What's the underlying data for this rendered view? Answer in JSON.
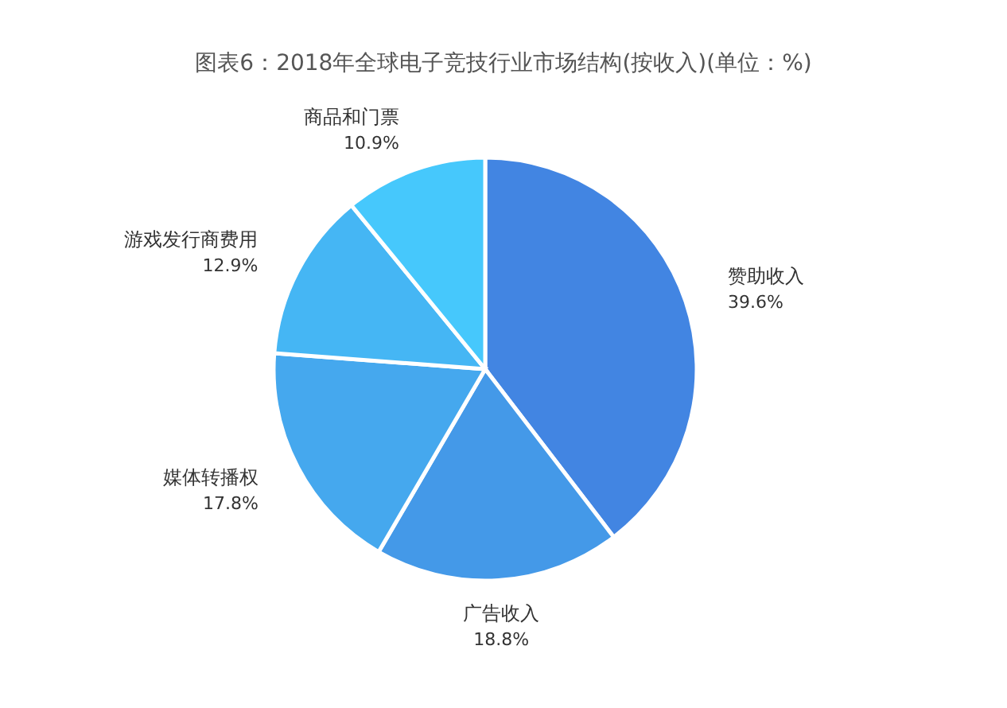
{
  "chart_data": {
    "type": "pie",
    "title": "图表6：2018年全球电子竞技行业市场结构(按收入)(单位：%)",
    "categories": [
      "赞助收入",
      "广告收入",
      "媒体转播权",
      "游戏发行商费用",
      "商品和门票"
    ],
    "values": [
      39.6,
      18.8,
      17.8,
      12.9,
      10.9
    ],
    "value_labels": [
      "39.6%",
      "18.8%",
      "17.8%",
      "12.9%",
      "10.9%"
    ],
    "colors": [
      "#4285e2",
      "#4499e8",
      "#45a8ee",
      "#45b6f4",
      "#46c8fc"
    ]
  }
}
